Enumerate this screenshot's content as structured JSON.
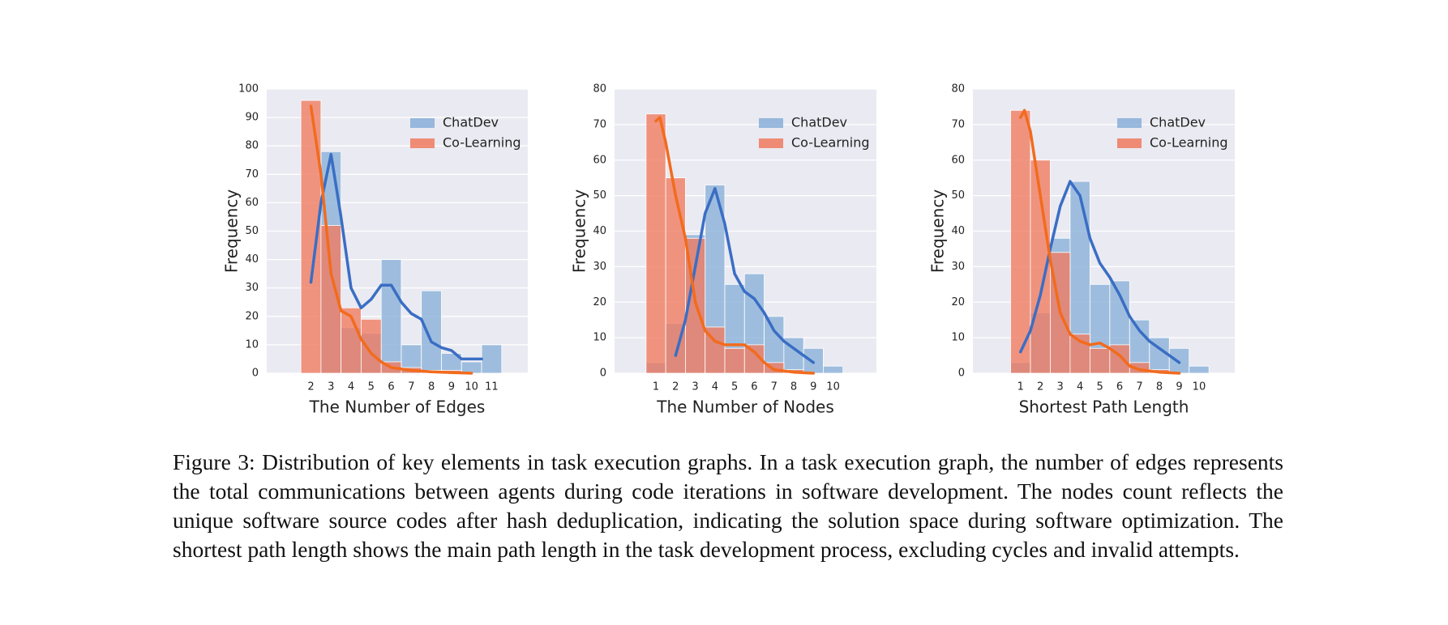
{
  "chart_data": [
    {
      "type": "histogram",
      "xlabel": "The Number of Edges",
      "ylabel": "Frequency",
      "x": [
        2,
        3,
        4,
        5,
        6,
        7,
        8,
        9,
        10,
        11
      ],
      "series": [
        {
          "name": "ChatDev",
          "color": "#88afd8",
          "values": [
            0,
            78,
            16,
            14,
            40,
            10,
            29,
            7,
            4,
            10
          ]
        },
        {
          "name": "Co-Learning",
          "color": "#f07a5f",
          "values": [
            96,
            52,
            23,
            19,
            4,
            2,
            1,
            1,
            0,
            0
          ]
        }
      ],
      "kde": [
        {
          "color": "#3a6ec4",
          "x": [
            2,
            2.5,
            3,
            3.5,
            4,
            4.5,
            5,
            5.5,
            6,
            6.5,
            7,
            7.5,
            8,
            8.5,
            9,
            9.5,
            10,
            10.5
          ],
          "values": [
            32,
            60,
            77,
            55,
            30,
            23,
            26,
            31,
            31,
            25,
            21,
            19,
            11,
            9,
            8,
            5,
            5,
            5
          ]
        },
        {
          "color": "#f26b1d",
          "x": [
            2,
            2.5,
            3,
            3.5,
            4,
            4.5,
            5,
            5.5,
            6,
            7,
            8,
            9,
            10
          ],
          "values": [
            94,
            70,
            35,
            22,
            20,
            12,
            7,
            4,
            2,
            1,
            0.5,
            0.2,
            0
          ]
        }
      ],
      "xlim": [
        -0.2,
        12.8
      ],
      "xticks": [
        2,
        3,
        4,
        5,
        6,
        7,
        8,
        9,
        10,
        11
      ],
      "ylim": [
        0,
        100
      ],
      "yticks": [
        0,
        10,
        20,
        30,
        40,
        50,
        60,
        70,
        80,
        90,
        100
      ],
      "grid": true,
      "legend": "upper right"
    },
    {
      "type": "histogram",
      "xlabel": "The Number of Nodes",
      "ylabel": "Frequency",
      "x": [
        1,
        2,
        3,
        4,
        5,
        6,
        7,
        8,
        9,
        10
      ],
      "series": [
        {
          "name": "ChatDev",
          "color": "#88afd8",
          "values": [
            3,
            14,
            39,
            53,
            25,
            28,
            16,
            10,
            7,
            2
          ]
        },
        {
          "name": "Co-Learning",
          "color": "#f07a5f",
          "values": [
            73,
            55,
            38,
            13,
            7,
            8,
            3,
            1,
            0,
            0
          ]
        }
      ],
      "kde": [
        {
          "color": "#3a6ec4",
          "x": [
            2,
            2.5,
            3,
            3.5,
            4,
            4.5,
            5,
            5.5,
            6,
            6.5,
            7,
            7.5,
            8,
            8.5,
            9
          ],
          "values": [
            5,
            15,
            30,
            45,
            52,
            42,
            28,
            23,
            21,
            17,
            12,
            9,
            7,
            5,
            3
          ]
        },
        {
          "color": "#f26b1d",
          "x": [
            1,
            1.2,
            1.5,
            2,
            2.5,
            3,
            3.5,
            4,
            4.5,
            5,
            5.5,
            6,
            6.5,
            7,
            8,
            9
          ],
          "values": [
            71,
            72,
            65,
            50,
            38,
            20,
            12,
            9,
            8,
            8,
            8,
            6,
            3,
            1,
            0.3,
            0
          ]
        }
      ],
      "xlim": [
        -1.1,
        12.2
      ],
      "xticks": [
        1,
        2,
        3,
        4,
        5,
        6,
        7,
        8,
        9,
        10
      ],
      "ylim": [
        0,
        80
      ],
      "yticks": [
        0,
        10,
        20,
        30,
        40,
        50,
        60,
        70,
        80
      ],
      "grid": true,
      "legend": "upper right"
    },
    {
      "type": "histogram",
      "xlabel": "Shortest Path Length",
      "ylabel": "Frequency",
      "x": [
        1,
        2,
        3,
        4,
        5,
        6,
        7,
        8,
        9,
        10
      ],
      "series": [
        {
          "name": "ChatDev",
          "color": "#88afd8",
          "values": [
            3,
            17,
            38,
            54,
            25,
            26,
            15,
            10,
            7,
            2
          ]
        },
        {
          "name": "Co-Learning",
          "color": "#f07a5f",
          "values": [
            74,
            60,
            34,
            11,
            7,
            8,
            3,
            1,
            0,
            0
          ]
        }
      ],
      "kde": [
        {
          "color": "#3a6ec4",
          "x": [
            1,
            1.5,
            2,
            2.5,
            3,
            3.5,
            4,
            4.5,
            5,
            5.5,
            6,
            6.5,
            7,
            7.5,
            8,
            8.5,
            9
          ],
          "values": [
            6,
            12,
            22,
            35,
            47,
            54,
            50,
            38,
            31,
            27,
            22,
            16,
            12,
            9,
            7,
            5,
            3
          ]
        },
        {
          "color": "#f26b1d",
          "x": [
            1,
            1.2,
            1.5,
            2,
            2.5,
            3,
            3.5,
            4,
            4.5,
            5,
            5.5,
            6,
            6.5,
            7,
            8,
            9
          ],
          "values": [
            72,
            74,
            68,
            50,
            32,
            17,
            11,
            9,
            8,
            8.5,
            7,
            5,
            2,
            1,
            0.3,
            0
          ]
        }
      ],
      "xlim": [
        -1.4,
        11.8
      ],
      "xticks": [
        1,
        2,
        3,
        4,
        5,
        6,
        7,
        8,
        9,
        10
      ],
      "ylim": [
        0,
        80
      ],
      "yticks": [
        0,
        10,
        20,
        30,
        40,
        50,
        60,
        70,
        80
      ],
      "grid": true,
      "legend": "upper right"
    }
  ],
  "caption": "Figure 3: Distribution of key elements in task execution graphs. In a task execution graph, the number of edges represents the total communications between agents during code iterations in software development. The nodes count reflects the unique software source codes after hash deduplication, indicating the solution space during software optimization. The shortest path length shows the main path length in the task development process, excluding cycles and invalid attempts."
}
